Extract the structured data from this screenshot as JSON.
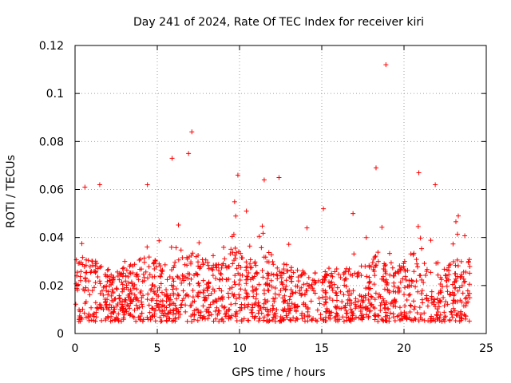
{
  "chart_data": {
    "type": "scatter",
    "title": "Day 241 of 2024, Rate Of TEC Index for receiver kiri",
    "xlabel": "GPS time / hours",
    "ylabel": "ROTI / TECUs",
    "xlim": [
      0,
      25
    ],
    "ylim": [
      0,
      0.12
    ],
    "xticks": [
      0,
      5,
      10,
      15,
      20,
      25
    ],
    "xtick_labels": [
      "0",
      "5",
      "10",
      "15",
      "20",
      "25"
    ],
    "yticks": [
      0,
      0.02,
      0.04,
      0.06,
      0.08,
      0.1,
      0.12
    ],
    "ytick_labels": [
      "0",
      "0.02",
      "0.04",
      "0.06",
      "0.08",
      "0.1",
      "0.12"
    ],
    "grid": true,
    "marker": "+",
    "color": "#ff0000",
    "series": [
      {
        "name": "ROTI",
        "x_range": [
          0,
          24
        ],
        "baseline_band": [
          0.005,
          0.03
        ],
        "notable_points": [
          {
            "x": 18.9,
            "y": 0.112
          },
          {
            "x": 7.1,
            "y": 0.084
          },
          {
            "x": 6.9,
            "y": 0.075
          },
          {
            "x": 5.9,
            "y": 0.073
          },
          {
            "x": 18.3,
            "y": 0.069
          },
          {
            "x": 20.9,
            "y": 0.067
          },
          {
            "x": 9.9,
            "y": 0.066
          },
          {
            "x": 12.4,
            "y": 0.065
          },
          {
            "x": 11.5,
            "y": 0.064
          },
          {
            "x": 1.5,
            "y": 0.062
          },
          {
            "x": 4.4,
            "y": 0.062
          },
          {
            "x": 0.6,
            "y": 0.061
          },
          {
            "x": 21.9,
            "y": 0.062
          },
          {
            "x": 15.1,
            "y": 0.052
          },
          {
            "x": 16.9,
            "y": 0.05
          },
          {
            "x": 23.3,
            "y": 0.049
          },
          {
            "x": 14.1,
            "y": 0.044
          }
        ]
      }
    ]
  }
}
